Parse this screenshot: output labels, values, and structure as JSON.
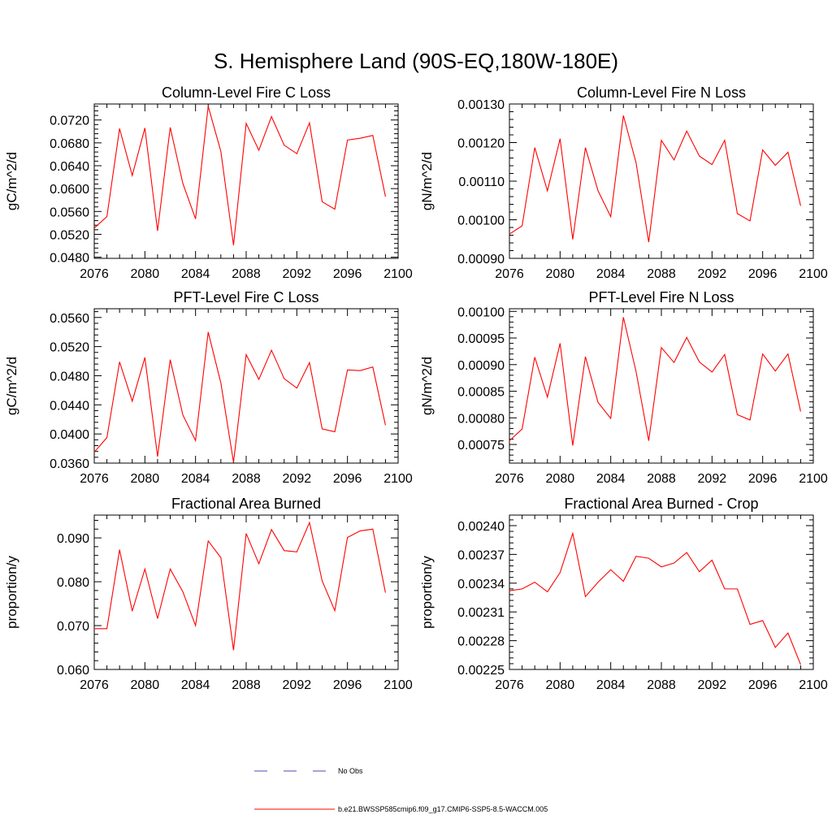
{
  "title": "S. Hemisphere Land (90S-EQ,180W-180E)",
  "colors": {
    "series": "#ff0000",
    "obs": "#4a4ab8",
    "axis": "#000000"
  },
  "legend": [
    {
      "label": "No Obs",
      "style": "dashed",
      "color": "#4a4ab8"
    },
    {
      "label": "b.e21.BWSSP585cmip6.f09_g17.CMIP6-SSP5-8.5-WACCM.005",
      "style": "solid",
      "color": "#ff0000"
    }
  ],
  "chart_data": [
    {
      "type": "line",
      "title": "Column-Level Fire C Loss",
      "ylabel": "gC/m^2/d",
      "xlim": [
        2076,
        2100
      ],
      "ylim": [
        0.0478,
        0.0748
      ],
      "xticks": [
        "2076",
        "2080",
        "2084",
        "2088",
        "2092",
        "2096",
        "2100"
      ],
      "yticks": [
        "0.0480",
        "0.0520",
        "0.0560",
        "0.0600",
        "0.0640",
        "0.0680",
        "0.0720"
      ],
      "x": [
        2076,
        2077,
        2078,
        2079,
        2080,
        2081,
        2082,
        2083,
        2084,
        2085,
        2086,
        2087,
        2088,
        2089,
        2090,
        2091,
        2092,
        2093,
        2094,
        2095,
        2096,
        2097,
        2098,
        2099
      ],
      "values": [
        0.0531,
        0.0551,
        0.0705,
        0.0623,
        0.0706,
        0.0526,
        0.0707,
        0.0609,
        0.0547,
        0.0744,
        0.0665,
        0.0501,
        0.0714,
        0.0667,
        0.0726,
        0.0676,
        0.0661,
        0.0715,
        0.0577,
        0.0564,
        0.0685,
        0.0688,
        0.0693,
        0.0586
      ]
    },
    {
      "type": "line",
      "title": "Column-Level Fire N Loss",
      "ylabel": "gN/m^2/d",
      "xlim": [
        2076,
        2100
      ],
      "ylim": [
        0.0009,
        0.0013
      ],
      "xticks": [
        "2076",
        "2080",
        "2084",
        "2088",
        "2092",
        "2096",
        "2100"
      ],
      "yticks": [
        "0.00090",
        "0.00100",
        "0.00110",
        "0.00120",
        "0.00130"
      ],
      "x": [
        2076,
        2077,
        2078,
        2079,
        2080,
        2081,
        2082,
        2083,
        2084,
        2085,
        2086,
        2087,
        2088,
        2089,
        2090,
        2091,
        2092,
        2093,
        2094,
        2095,
        2096,
        2097,
        2098,
        2099
      ],
      "values": [
        0.000963,
        0.000984,
        0.001187,
        0.001075,
        0.00121,
        0.000949,
        0.001187,
        0.001075,
        0.001008,
        0.00127,
        0.001148,
        0.000942,
        0.001206,
        0.001155,
        0.00123,
        0.001165,
        0.001143,
        0.001206,
        0.001016,
        0.000997,
        0.001181,
        0.001141,
        0.001175,
        0.001036
      ]
    },
    {
      "type": "line",
      "title": "PFT-Level Fire C Loss",
      "ylabel": "gC/m^2/d",
      "xlim": [
        2076,
        2100
      ],
      "ylim": [
        0.036,
        0.0572
      ],
      "xticks": [
        "2076",
        "2080",
        "2084",
        "2088",
        "2092",
        "2096",
        "2100"
      ],
      "yticks": [
        "0.0360",
        "0.0400",
        "0.0440",
        "0.0480",
        "0.0520",
        "0.0560"
      ],
      "x": [
        2076,
        2077,
        2078,
        2079,
        2080,
        2081,
        2082,
        2083,
        2084,
        2085,
        2086,
        2087,
        2088,
        2089,
        2090,
        2091,
        2092,
        2093,
        2094,
        2095,
        2096,
        2097,
        2098,
        2099
      ],
      "values": [
        0.0375,
        0.0395,
        0.0499,
        0.0445,
        0.0505,
        0.0369,
        0.0502,
        0.0426,
        0.0391,
        0.054,
        0.047,
        0.0361,
        0.0509,
        0.0475,
        0.0515,
        0.0476,
        0.0463,
        0.0498,
        0.0407,
        0.0403,
        0.0488,
        0.0487,
        0.0492,
        0.0412
      ]
    },
    {
      "type": "line",
      "title": "PFT-Level Fire N Loss",
      "ylabel": "gN/m^2/d",
      "xlim": [
        2076,
        2100
      ],
      "ylim": [
        0.000715,
        0.001005
      ],
      "xticks": [
        "2076",
        "2080",
        "2084",
        "2088",
        "2092",
        "2096",
        "2100"
      ],
      "yticks": [
        "0.00075",
        "0.00080",
        "0.00085",
        "0.00090",
        "0.00095",
        "0.00100"
      ],
      "x": [
        2076,
        2077,
        2078,
        2079,
        2080,
        2081,
        2082,
        2083,
        2084,
        2085,
        2086,
        2087,
        2088,
        2089,
        2090,
        2091,
        2092,
        2093,
        2094,
        2095,
        2096,
        2097,
        2098,
        2099
      ],
      "values": [
        0.000757,
        0.000779,
        0.000914,
        0.000839,
        0.00094,
        0.000748,
        0.000915,
        0.000829,
        0.000799,
        0.000989,
        0.000887,
        0.000757,
        0.000932,
        0.000904,
        0.000951,
        0.000905,
        0.000886,
        0.000919,
        0.000806,
        0.000796,
        0.00092,
        0.000888,
        0.00092,
        0.000812
      ]
    },
    {
      "type": "line",
      "title": "Fractional Area Burned",
      "ylabel": "proportion/y",
      "xlim": [
        2076,
        2100
      ],
      "ylim": [
        0.06,
        0.0952
      ],
      "xticks": [
        "2076",
        "2080",
        "2084",
        "2088",
        "2092",
        "2096",
        "2100"
      ],
      "yticks": [
        "0.060",
        "0.070",
        "0.080",
        "0.090"
      ],
      "x": [
        2076,
        2077,
        2078,
        2079,
        2080,
        2081,
        2082,
        2083,
        2084,
        2085,
        2086,
        2087,
        2088,
        2089,
        2090,
        2091,
        2092,
        2093,
        2094,
        2095,
        2096,
        2097,
        2098,
        2099
      ],
      "values": [
        0.0693,
        0.0693,
        0.0873,
        0.0733,
        0.0829,
        0.0716,
        0.0829,
        0.0777,
        0.07,
        0.0893,
        0.0855,
        0.0644,
        0.091,
        0.0841,
        0.0919,
        0.0871,
        0.0868,
        0.0935,
        0.0802,
        0.0734,
        0.0901,
        0.0916,
        0.092,
        0.0775
      ]
    },
    {
      "type": "line",
      "title": "Fractional Area Burned - Crop",
      "ylabel": "proportion/y",
      "xlim": [
        2076,
        2100
      ],
      "ylim": [
        0.00225,
        0.002411
      ],
      "xticks": [
        "2076",
        "2080",
        "2084",
        "2088",
        "2092",
        "2096",
        "2100"
      ],
      "yticks": [
        "0.00225",
        "0.00228",
        "0.00231",
        "0.00234",
        "0.00237",
        "0.00240"
      ],
      "x": [
        2076,
        2077,
        2078,
        2079,
        2080,
        2081,
        2082,
        2083,
        2084,
        2085,
        2086,
        2087,
        2088,
        2089,
        2090,
        2091,
        2092,
        2093,
        2094,
        2095,
        2096,
        2097,
        2098,
        2099
      ],
      "values": [
        0.002332,
        0.002334,
        0.002341,
        0.002331,
        0.002351,
        0.002392,
        0.002326,
        0.002341,
        0.002354,
        0.002342,
        0.002368,
        0.002366,
        0.002357,
        0.002361,
        0.002372,
        0.002352,
        0.002364,
        0.002334,
        0.002334,
        0.002297,
        0.002301,
        0.002273,
        0.002288,
        0.002255
      ]
    }
  ]
}
